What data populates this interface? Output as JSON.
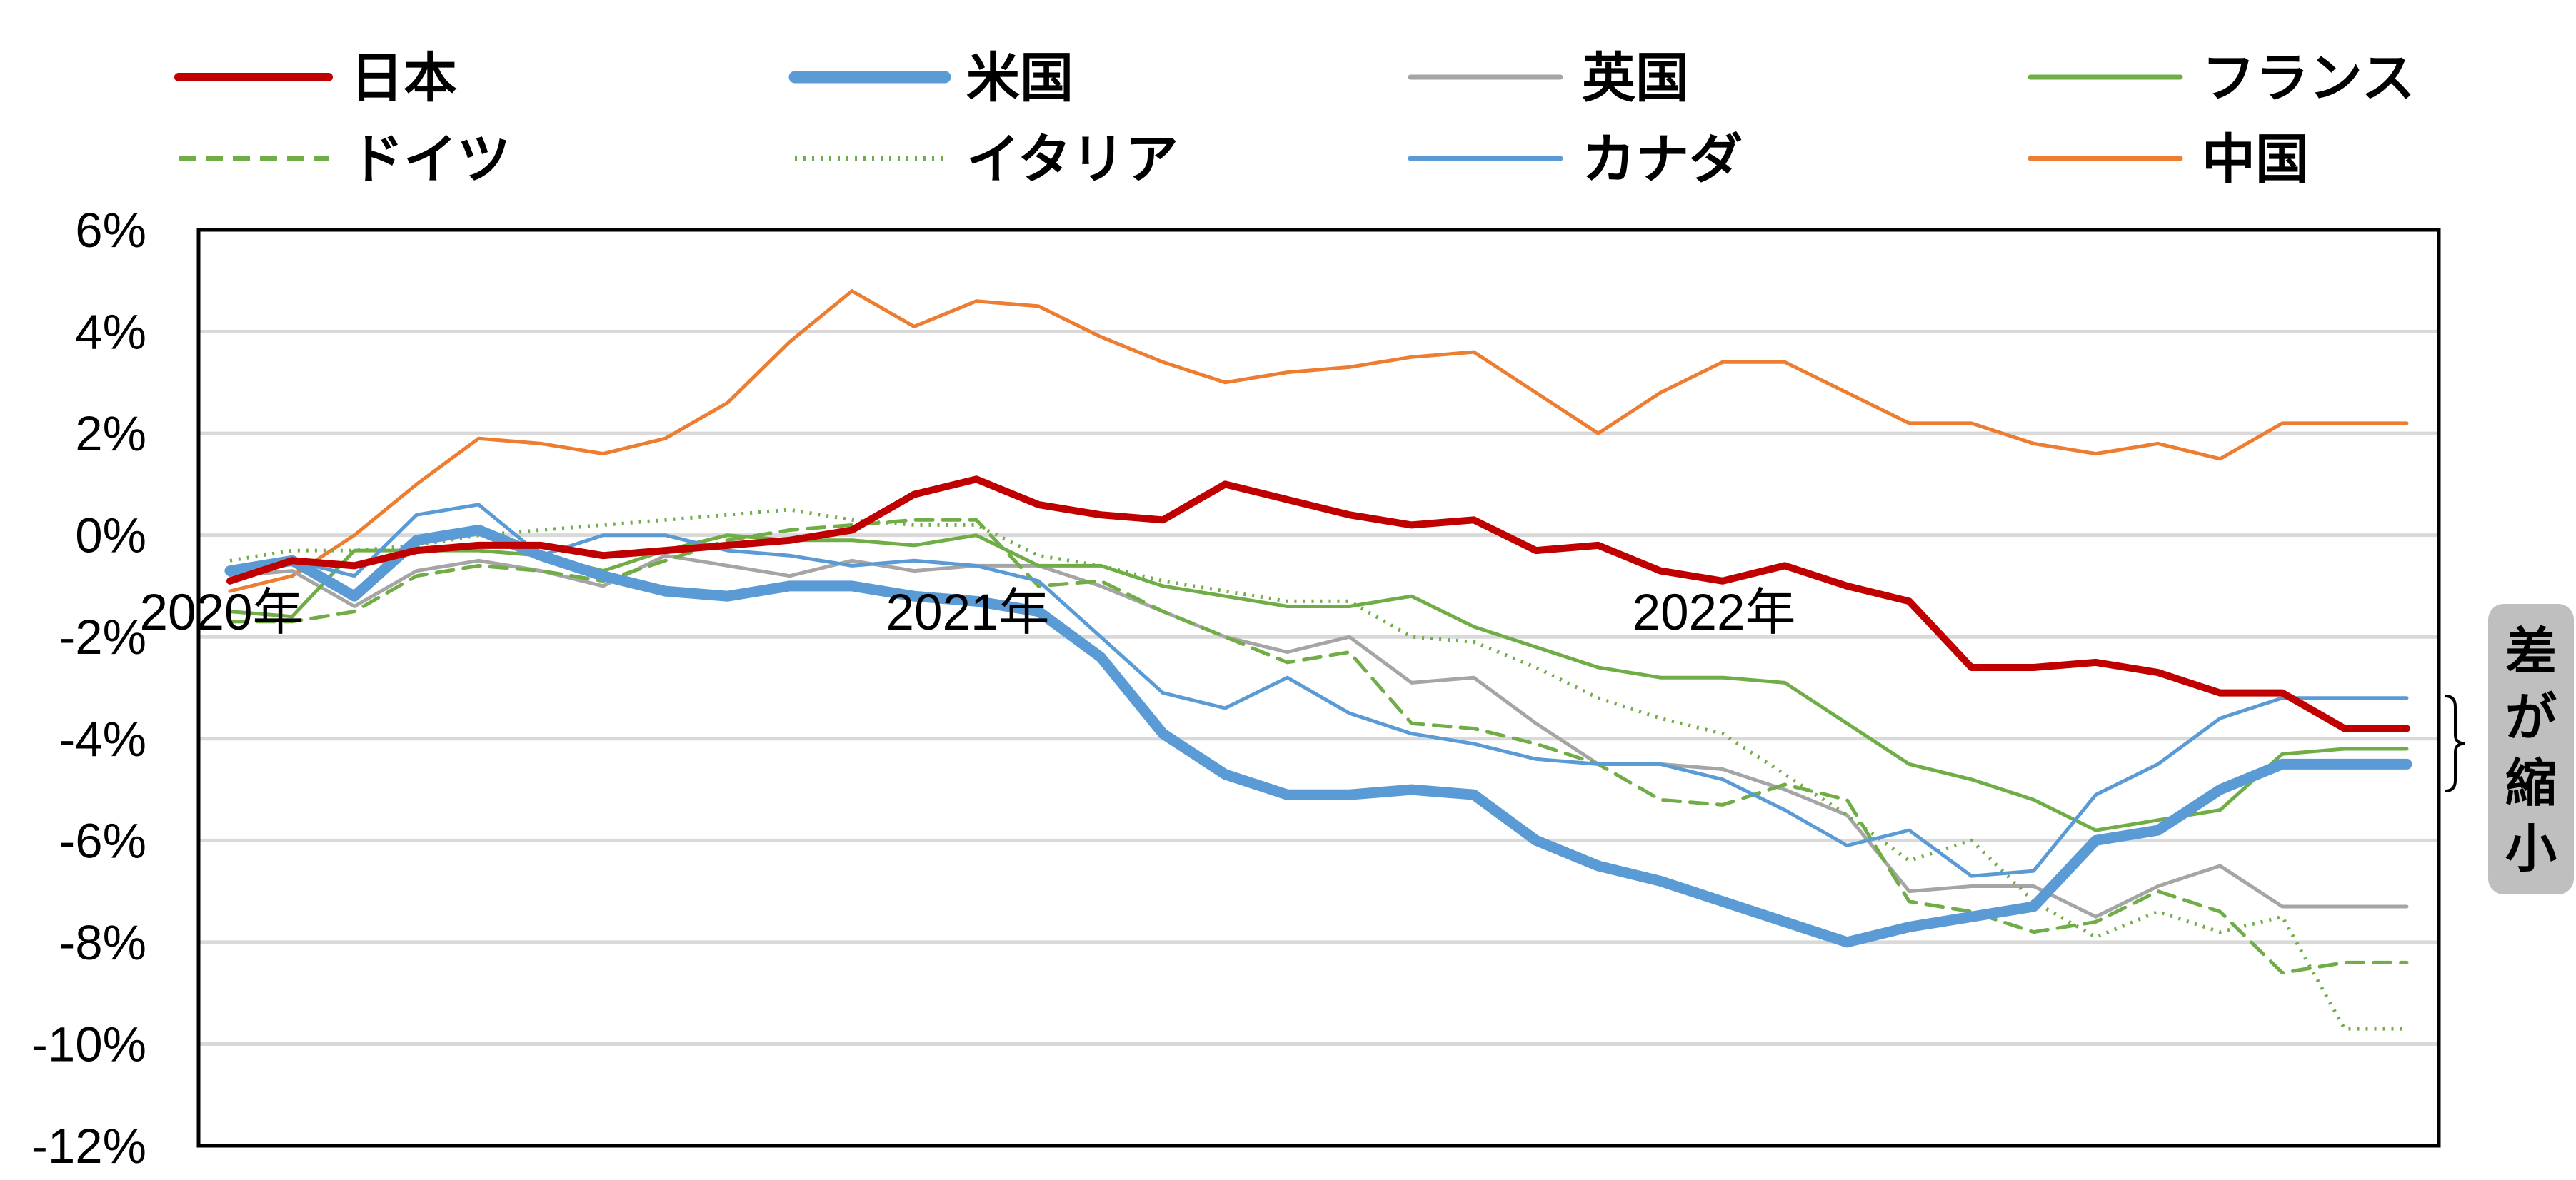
{
  "chart_data": {
    "type": "line",
    "title": "",
    "xlabel": "",
    "ylabel": "",
    "ylim": [
      -12,
      6
    ],
    "yticks": [
      6,
      4,
      2,
      0,
      -2,
      -4,
      -6,
      -8,
      -10,
      -12
    ],
    "ytick_labels": [
      "6%",
      "4%",
      "2%",
      "0%",
      "-2%",
      "-4%",
      "-6%",
      "-8%",
      "-10%",
      "-12%"
    ],
    "grid": "horizontal",
    "legend_position": "top",
    "x_labels": [
      {
        "label": "2020年",
        "index": 0
      },
      {
        "label": "2021年",
        "index": 12
      },
      {
        "label": "2022年",
        "index": 24
      }
    ],
    "x": [
      "2020-01",
      "2020-02",
      "2020-03",
      "2020-04",
      "2020-05",
      "2020-06",
      "2020-07",
      "2020-08",
      "2020-09",
      "2020-10",
      "2020-11",
      "2020-12",
      "2021-01",
      "2021-02",
      "2021-03",
      "2021-04",
      "2021-05",
      "2021-06",
      "2021-07",
      "2021-08",
      "2021-09",
      "2021-10",
      "2021-11",
      "2021-12",
      "2022-01",
      "2022-02",
      "2022-03",
      "2022-04",
      "2022-05",
      "2022-06",
      "2022-07",
      "2022-08",
      "2022-09",
      "2022-10",
      "2022-11",
      "2022-12"
    ],
    "series": [
      {
        "name": "日本",
        "color": "#C00000",
        "width": 10,
        "dash": "",
        "values": [
          -0.9,
          -0.5,
          -0.6,
          -0.3,
          -0.2,
          -0.2,
          -0.4,
          -0.3,
          -0.2,
          -0.1,
          0.1,
          0.8,
          1.1,
          0.6,
          0.4,
          0.3,
          1.0,
          0.7,
          0.4,
          0.2,
          0.3,
          -0.3,
          -0.2,
          -0.7,
          -0.9,
          -0.6,
          -1.0,
          -1.3,
          -2.6,
          -2.6,
          -2.5,
          -2.7,
          -3.1,
          -3.1,
          -3.8,
          -3.8
        ]
      },
      {
        "name": "米国",
        "color": "#5B9BD5",
        "width": 15,
        "dash": "",
        "values": [
          -0.7,
          -0.5,
          -1.2,
          -0.1,
          0.1,
          -0.4,
          -0.8,
          -1.1,
          -1.2,
          -1.0,
          -1.0,
          -1.2,
          -1.3,
          -1.5,
          -2.4,
          -3.9,
          -4.7,
          -5.1,
          -5.1,
          -5.0,
          -5.1,
          -6.0,
          -6.5,
          -6.8,
          -7.2,
          -7.6,
          -8.0,
          -7.7,
          -7.5,
          -7.3,
          -6.0,
          -5.8,
          -5.0,
          -4.5,
          -4.5,
          -4.5
        ]
      },
      {
        "name": "英国",
        "color": "#A5A5A5",
        "width": 5,
        "dash": "",
        "values": [
          -0.8,
          -0.7,
          -1.4,
          -0.7,
          -0.5,
          -0.7,
          -1.0,
          -0.4,
          -0.6,
          -0.8,
          -0.5,
          -0.7,
          -0.6,
          -0.6,
          -1.0,
          -1.5,
          -2.0,
          -2.3,
          -2.0,
          -2.9,
          -2.8,
          -3.7,
          -4.5,
          -4.5,
          -4.6,
          -5.0,
          -5.5,
          -7.0,
          -6.9,
          -6.9,
          -7.5,
          -6.9,
          -6.5,
          -7.3,
          -7.3,
          -7.3
        ]
      },
      {
        "name": "フランス",
        "color": "#70AD47",
        "width": 5,
        "dash": "",
        "values": [
          -1.5,
          -1.6,
          -0.3,
          -0.3,
          -0.3,
          -0.4,
          -0.7,
          -0.3,
          0.0,
          -0.1,
          -0.1,
          -0.2,
          0.0,
          -0.6,
          -0.6,
          -1.0,
          -1.2,
          -1.4,
          -1.4,
          -1.2,
          -1.8,
          -2.2,
          -2.6,
          -2.8,
          -2.8,
          -2.9,
          -3.7,
          -4.5,
          -4.8,
          -5.2,
          -5.8,
          -5.6,
          -5.4,
          -4.3,
          -4.2,
          -4.2
        ]
      },
      {
        "name": "ドイツ",
        "color": "#70AD47",
        "width": 5,
        "dash": "24 14",
        "values": [
          -1.7,
          -1.7,
          -1.5,
          -0.8,
          -0.6,
          -0.7,
          -0.9,
          -0.5,
          -0.1,
          0.1,
          0.2,
          0.3,
          0.3,
          -1.0,
          -0.9,
          -1.5,
          -2.0,
          -2.5,
          -2.3,
          -3.7,
          -3.8,
          -4.1,
          -4.5,
          -5.2,
          -5.3,
          -4.9,
          -5.2,
          -7.2,
          -7.4,
          -7.8,
          -7.6,
          -7.0,
          -7.4,
          -8.6,
          -8.4,
          -8.4
        ]
      },
      {
        "name": "イタリア",
        "color": "#70AD47",
        "width": 5,
        "dash": "3 9",
        "values": [
          -0.5,
          -0.3,
          -0.3,
          -0.2,
          0.0,
          0.1,
          0.2,
          0.3,
          0.4,
          0.5,
          0.3,
          0.2,
          0.2,
          -0.4,
          -0.6,
          -0.9,
          -1.1,
          -1.3,
          -1.3,
          -2.0,
          -2.1,
          -2.6,
          -3.2,
          -3.6,
          -3.9,
          -4.7,
          -5.5,
          -6.4,
          -6.0,
          -7.2,
          -7.9,
          -7.4,
          -7.8,
          -7.5,
          -9.7,
          -9.7
        ]
      },
      {
        "name": "カナダ",
        "color": "#5B9BD5",
        "width": 5,
        "dash": "",
        "values": [
          -0.7,
          -0.5,
          -0.8,
          0.4,
          0.6,
          -0.4,
          0.0,
          0.0,
          -0.3,
          -0.4,
          -0.6,
          -0.5,
          -0.6,
          -0.9,
          -2.0,
          -3.1,
          -3.4,
          -2.8,
          -3.5,
          -3.9,
          -4.1,
          -4.4,
          -4.5,
          -4.5,
          -4.8,
          -5.4,
          -6.1,
          -5.8,
          -6.7,
          -6.6,
          -5.1,
          -4.5,
          -3.6,
          -3.2,
          -3.2,
          -3.2
        ]
      },
      {
        "name": "中国",
        "color": "#ED7D31",
        "width": 5,
        "dash": "",
        "values": [
          -1.1,
          -0.8,
          0.0,
          1.0,
          1.9,
          1.8,
          1.6,
          1.9,
          2.6,
          3.8,
          4.8,
          4.1,
          4.6,
          4.5,
          3.9,
          3.4,
          3.0,
          3.2,
          3.3,
          3.5,
          3.6,
          2.8,
          2.0,
          2.8,
          3.4,
          3.4,
          2.8,
          2.2,
          2.2,
          1.8,
          1.6,
          1.8,
          1.5,
          2.2,
          2.2,
          2.2
        ]
      }
    ],
    "annotation": {
      "text": "差が縮小",
      "chars": [
        "差",
        "が",
        "縮",
        "小"
      ]
    }
  }
}
